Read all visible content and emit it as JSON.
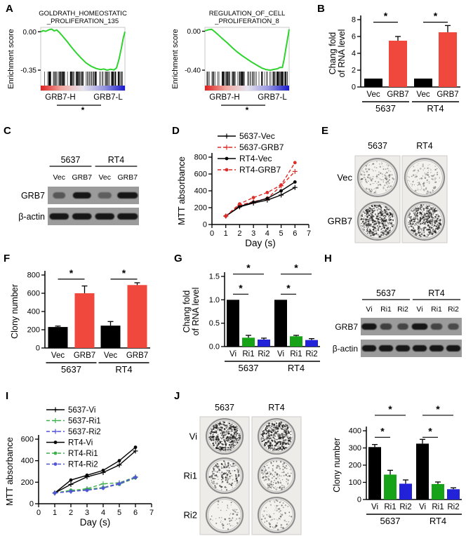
{
  "colors": {
    "black": "#000000",
    "bar_red": "#f0483c",
    "bar_green": "#16a317",
    "bar_blue": "#2222d8",
    "line_red": "#e02c28",
    "line_green": "#3db04c",
    "line_blue": "#5254d6",
    "gsea_green": "#2ed32e",
    "blot_bg": "#9b9b9b",
    "band": "#141414",
    "plate_bg": "#eeece8",
    "dish_ring": "#8f8f8f",
    "dish_fill": "#f3f2ef",
    "gradient_stops": [
      "#dd2020",
      "#f0a8a0",
      "#e8e4ee",
      "#9898e0",
      "#1818cc"
    ]
  },
  "panels": {
    "A": {
      "label": "A"
    },
    "B": {
      "label": "B"
    },
    "C": {
      "label": "C",
      "blot": {
        "groups": [
          {
            "label": "5637",
            "lanes": [
              0,
              1
            ]
          },
          {
            "label": "RT4",
            "lanes": [
              2,
              3
            ]
          }
        ],
        "lanes": [
          "Vec",
          "GRB7",
          "Vec",
          "GRB7"
        ],
        "rows": [
          {
            "label": "GRB7",
            "bands": [
              0.3,
              1.0,
              0.22,
              1.0
            ],
            "widths": [
              0.55,
              0.8,
              0.6,
              0.9
            ]
          },
          {
            "label": "β-actin",
            "bands": [
              1,
              1,
              1,
              1
            ],
            "widths": [
              0.85,
              0.85,
              0.85,
              0.9
            ]
          }
        ]
      }
    },
    "D": {
      "label": "D"
    },
    "E": {
      "label": "E",
      "colony": {
        "cols": [
          "5637",
          "RT4"
        ],
        "rows": [
          "Vec",
          "GRB7"
        ],
        "dots": [
          [
            140,
            115
          ],
          [
            460,
            430
          ]
        ],
        "dot_shade": [
          [
            0.45,
            0.45
          ],
          [
            0.8,
            0.8
          ]
        ]
      }
    },
    "F": {
      "label": "F"
    },
    "G": {
      "label": "G"
    },
    "H": {
      "label": "H",
      "blot": {
        "groups": [
          {
            "label": "5637",
            "lanes": [
              0,
              2
            ]
          },
          {
            "label": "RT4",
            "lanes": [
              3,
              5
            ]
          }
        ],
        "lanes": [
          "Vi",
          "Ri1",
          "Ri2",
          "Vi",
          "Ri1",
          "Ri2"
        ],
        "rows": [
          {
            "label": "GRB7",
            "bands": [
              1.0,
              0.55,
              0.5,
              1.0,
              0.5,
              0.45
            ],
            "widths": [
              0.9,
              0.7,
              0.65,
              0.95,
              0.7,
              0.65
            ]
          },
          {
            "label": "β-actin",
            "bands": [
              1,
              1,
              1,
              1,
              1,
              1
            ],
            "widths": [
              0.85,
              0.85,
              0.85,
              0.85,
              0.85,
              0.85
            ]
          }
        ]
      }
    },
    "I": {
      "label": "I"
    },
    "J": {
      "label": "J",
      "colony": {
        "cols": [
          "5637",
          "RT4"
        ],
        "rows": [
          "Vi",
          "Ri1",
          "Ri2"
        ],
        "dots": [
          [
            390,
            360
          ],
          [
            165,
            130
          ],
          [
            60,
            80
          ]
        ],
        "dot_shade": [
          [
            0.9,
            0.95
          ],
          [
            0.75,
            0.6
          ],
          [
            0.55,
            0.6
          ]
        ]
      }
    }
  },
  "chart_data": [
    {
      "id": "gsea_left",
      "type": "line",
      "panel": "A",
      "title": "GOLDRATH_HOMEOSTATIC_PROLIFERATION_135",
      "title_lines": [
        "GOLDRATH_HOMEOSTATIC",
        "_PROLIFERATION_135"
      ],
      "ylabel": "Enrichment score",
      "ymax": 0.04,
      "ymin": -0.35,
      "yticks": [
        {
          "v": 0,
          "label": "0.00"
        },
        {
          "v": -0.35,
          "label": "-0.35"
        }
      ],
      "x_labels": [
        "GRB7-H",
        "GRB7-L"
      ],
      "sig": "*",
      "curve": [
        [
          0.0,
          0.0
        ],
        [
          0.03,
          0.01
        ],
        [
          0.06,
          0.004
        ],
        [
          0.1,
          0.018
        ],
        [
          0.13,
          0.024
        ],
        [
          0.16,
          0.008
        ],
        [
          0.19,
          0.016
        ],
        [
          0.22,
          -0.005
        ],
        [
          0.26,
          -0.04
        ],
        [
          0.31,
          -0.085
        ],
        [
          0.36,
          -0.135
        ],
        [
          0.42,
          -0.19
        ],
        [
          0.48,
          -0.24
        ],
        [
          0.54,
          -0.285
        ],
        [
          0.6,
          -0.315
        ],
        [
          0.66,
          -0.335
        ],
        [
          0.71,
          -0.345
        ],
        [
          0.75,
          -0.34
        ],
        [
          0.79,
          -0.35
        ],
        [
          0.83,
          -0.342
        ],
        [
          0.87,
          -0.348
        ],
        [
          0.9,
          -0.33
        ],
        [
          0.93,
          -0.25
        ],
        [
          0.96,
          -0.14
        ],
        [
          0.98,
          -0.06
        ],
        [
          1.0,
          0.0
        ]
      ]
    },
    {
      "id": "gsea_right",
      "type": "line",
      "panel": "A",
      "title": "REGULATION_OF_CELL_PROLIFERATION_8",
      "title_lines": [
        "REGULATION_OF_CELL",
        "_PROLIFERATION_8"
      ],
      "ylabel": "Enrichment score",
      "ymax": 0.04,
      "ymin": -0.4,
      "yticks": [
        {
          "v": 0,
          "label": "0.00"
        },
        {
          "v": -0.4,
          "label": "-0.40"
        }
      ],
      "x_labels": [
        "GRB7-H",
        "GRB7-L"
      ],
      "sig": "*",
      "curve": [
        [
          0.0,
          0.005
        ],
        [
          0.04,
          0.015
        ],
        [
          0.08,
          0.02
        ],
        [
          0.11,
          0.0
        ],
        [
          0.15,
          -0.03
        ],
        [
          0.2,
          -0.07
        ],
        [
          0.26,
          -0.115
        ],
        [
          0.32,
          -0.165
        ],
        [
          0.38,
          -0.21
        ],
        [
          0.44,
          -0.25
        ],
        [
          0.5,
          -0.285
        ],
        [
          0.56,
          -0.32
        ],
        [
          0.62,
          -0.35
        ],
        [
          0.68,
          -0.38
        ],
        [
          0.73,
          -0.395
        ],
        [
          0.78,
          -0.4
        ],
        [
          0.82,
          -0.392
        ],
        [
          0.86,
          -0.386
        ],
        [
          0.89,
          -0.372
        ],
        [
          0.92,
          -0.372
        ],
        [
          0.94,
          -0.29
        ],
        [
          0.96,
          -0.185
        ],
        [
          0.98,
          -0.085
        ],
        [
          1.0,
          0.02
        ]
      ]
    },
    {
      "id": "B",
      "type": "bar",
      "panel": "B",
      "ylabel_lines": [
        "Chang fold",
        "of RNA level"
      ],
      "ylim": [
        0,
        8
      ],
      "yticks": [
        0,
        2,
        4,
        6,
        8
      ],
      "ytick_labels": [
        "0",
        "2",
        "4",
        "6",
        "8"
      ],
      "groups": [
        {
          "label": "5637",
          "bars": [
            {
              "label": "Vec",
              "value": 1.0,
              "err": 0,
              "color": "black"
            },
            {
              "label": "GRB7",
              "value": 5.5,
              "err": 0.5,
              "color": "bar_red"
            }
          ]
        },
        {
          "label": "RT4",
          "bars": [
            {
              "label": "Vec",
              "value": 1.0,
              "err": 0,
              "color": "black"
            },
            {
              "label": "GRB7",
              "value": 6.5,
              "err": 0.8,
              "color": "bar_red"
            }
          ]
        }
      ],
      "sig": [
        {
          "g": 0,
          "a": 0,
          "b": 1,
          "y": 7.7,
          "label": "*"
        },
        {
          "g": 1,
          "a": 0,
          "b": 1,
          "y": 7.7,
          "label": "*"
        }
      ]
    },
    {
      "id": "D",
      "type": "line",
      "panel": "D",
      "xlabel": "Day (s)",
      "ylabel": "MTT absorbance",
      "xlim": [
        0,
        7
      ],
      "ylim": [
        0,
        800
      ],
      "xticks": [
        0,
        1,
        2,
        3,
        4,
        5,
        6,
        7
      ],
      "yticks": [
        0,
        200,
        400,
        600,
        800
      ],
      "x": [
        1,
        2,
        3,
        4,
        5,
        6
      ],
      "series": [
        {
          "name": "5637-Vec",
          "color": "black",
          "dash": false,
          "marker": "plus",
          "values": [
            100,
            210,
            255,
            290,
            350,
            440
          ]
        },
        {
          "name": "5637-GRB7",
          "color": "line_red",
          "dash": true,
          "marker": "plus",
          "values": [
            100,
            230,
            270,
            310,
            460,
            630
          ]
        },
        {
          "name": "RT4-Vec",
          "color": "black",
          "dash": false,
          "marker": "dot",
          "values": [
            100,
            215,
            265,
            310,
            400,
            505
          ]
        },
        {
          "name": "RT4-GRB7",
          "color": "line_red",
          "dash": true,
          "marker": "dot",
          "values": [
            100,
            245,
            320,
            380,
            470,
            735
          ]
        }
      ]
    },
    {
      "id": "F",
      "type": "bar",
      "panel": "F",
      "ylabel_lines": [
        "Clony number"
      ],
      "ylim": [
        0,
        800
      ],
      "yticks": [
        0,
        200,
        400,
        600,
        800
      ],
      "ytick_labels": [
        "0",
        "200",
        "400",
        "600",
        "800"
      ],
      "groups": [
        {
          "label": "5637",
          "bars": [
            {
              "label": "Vec",
              "value": 230,
              "err": 10,
              "color": "black"
            },
            {
              "label": "GRB7",
              "value": 600,
              "err": 80,
              "color": "bar_red"
            }
          ]
        },
        {
          "label": "RT4",
          "bars": [
            {
              "label": "Vec",
              "value": 245,
              "err": 45,
              "color": "black"
            },
            {
              "label": "GRB7",
              "value": 690,
              "err": 25,
              "color": "bar_red"
            }
          ]
        }
      ],
      "sig": [
        {
          "g": 0,
          "a": 0,
          "b": 1,
          "y": 755,
          "label": "*"
        },
        {
          "g": 1,
          "a": 0,
          "b": 1,
          "y": 755,
          "label": "*"
        }
      ]
    },
    {
      "id": "G",
      "type": "bar",
      "panel": "G",
      "ylabel_lines": [
        "Chang fold",
        "of RNA level"
      ],
      "ylim": [
        0,
        1.5
      ],
      "yticks": [
        0,
        0.5,
        1.0,
        1.5
      ],
      "ytick_labels": [
        "0.0",
        "0.5",
        "1.0",
        "1.5"
      ],
      "groups": [
        {
          "label": "5637",
          "bars": [
            {
              "label": "Vi",
              "value": 1.0,
              "err": 0,
              "color": "black"
            },
            {
              "label": "Ri1",
              "value": 0.19,
              "err": 0.05,
              "color": "bar_green"
            },
            {
              "label": "Ri2",
              "value": 0.15,
              "err": 0.03,
              "color": "bar_blue"
            }
          ]
        },
        {
          "label": "RT4",
          "bars": [
            {
              "label": "Vi",
              "value": 1.0,
              "err": 0,
              "color": "black"
            },
            {
              "label": "Ri1",
              "value": 0.22,
              "err": 0.02,
              "color": "bar_green"
            },
            {
              "label": "Ri2",
              "value": 0.14,
              "err": 0.03,
              "color": "bar_blue"
            }
          ]
        }
      ],
      "sig": [
        {
          "g": 0,
          "a": 0,
          "b": 1,
          "y": 1.12,
          "label": "*"
        },
        {
          "g": 0,
          "a": 0,
          "b": 2,
          "y": 1.55,
          "label": "*"
        },
        {
          "g": 1,
          "a": 0,
          "b": 1,
          "y": 1.12,
          "label": "*"
        },
        {
          "g": 1,
          "a": 0,
          "b": 2,
          "y": 1.55,
          "label": "*"
        }
      ]
    },
    {
      "id": "I",
      "type": "line",
      "panel": "I",
      "xlabel": "Day (s)",
      "ylabel": "MTT absorbance",
      "xlim": [
        0,
        7
      ],
      "ylim": [
        0,
        600
      ],
      "xticks": [
        0,
        1,
        2,
        3,
        4,
        5,
        6,
        7
      ],
      "yticks": [
        0,
        200,
        400,
        600
      ],
      "x": [
        1,
        2,
        3,
        4,
        5,
        6
      ],
      "series": [
        {
          "name": "5637-Vi",
          "color": "black",
          "dash": false,
          "marker": "plus",
          "values": [
            100,
            180,
            250,
            290,
            360,
            490
          ]
        },
        {
          "name": "5637-Ri1",
          "color": "line_green",
          "dash": true,
          "marker": "plus",
          "values": [
            100,
            120,
            140,
            185,
            195,
            250
          ]
        },
        {
          "name": "5637-Ri2",
          "color": "line_blue",
          "dash": true,
          "marker": "plus",
          "values": [
            100,
            115,
            130,
            150,
            190,
            245
          ]
        },
        {
          "name": "RT4-Vi",
          "color": "black",
          "dash": false,
          "marker": "dot",
          "values": [
            100,
            220,
            265,
            310,
            400,
            525
          ]
        },
        {
          "name": "RT4-Ri1",
          "color": "line_green",
          "dash": true,
          "marker": "dot",
          "values": [
            100,
            125,
            135,
            150,
            180,
            240
          ]
        },
        {
          "name": "RT4-Ri2",
          "color": "line_blue",
          "dash": true,
          "marker": "dot",
          "values": [
            100,
            115,
            125,
            145,
            185,
            245
          ]
        }
      ]
    },
    {
      "id": "K",
      "type": "bar",
      "panel": "K",
      "ylabel_lines": [
        "Clony number"
      ],
      "ylim": [
        0,
        400
      ],
      "yticks": [
        0,
        100,
        200,
        300,
        400
      ],
      "ytick_labels": [
        "0",
        "100",
        "200",
        "300",
        "400"
      ],
      "groups": [
        {
          "label": "5637",
          "bars": [
            {
              "label": "Vi",
              "value": 305,
              "err": 15,
              "color": "black"
            },
            {
              "label": "Ri1",
              "value": 145,
              "err": 25,
              "color": "bar_green"
            },
            {
              "label": "Ri2",
              "value": 92,
              "err": 22,
              "color": "bar_blue"
            }
          ]
        },
        {
          "label": "RT4",
          "bars": [
            {
              "label": "Vi",
              "value": 325,
              "err": 25,
              "color": "black"
            },
            {
              "label": "Ri1",
              "value": 90,
              "err": 12,
              "color": "bar_green"
            },
            {
              "label": "Ri2",
              "value": 60,
              "err": 8,
              "color": "bar_blue"
            }
          ]
        }
      ],
      "sig": [
        {
          "g": 0,
          "a": 0,
          "b": 1,
          "y": 362,
          "label": "*"
        },
        {
          "g": 0,
          "a": 0,
          "b": 2,
          "y": 490,
          "label": "*"
        },
        {
          "g": 1,
          "a": 0,
          "b": 1,
          "y": 362,
          "label": "*"
        },
        {
          "g": 1,
          "a": 0,
          "b": 2,
          "y": 490,
          "label": "*"
        }
      ]
    }
  ]
}
